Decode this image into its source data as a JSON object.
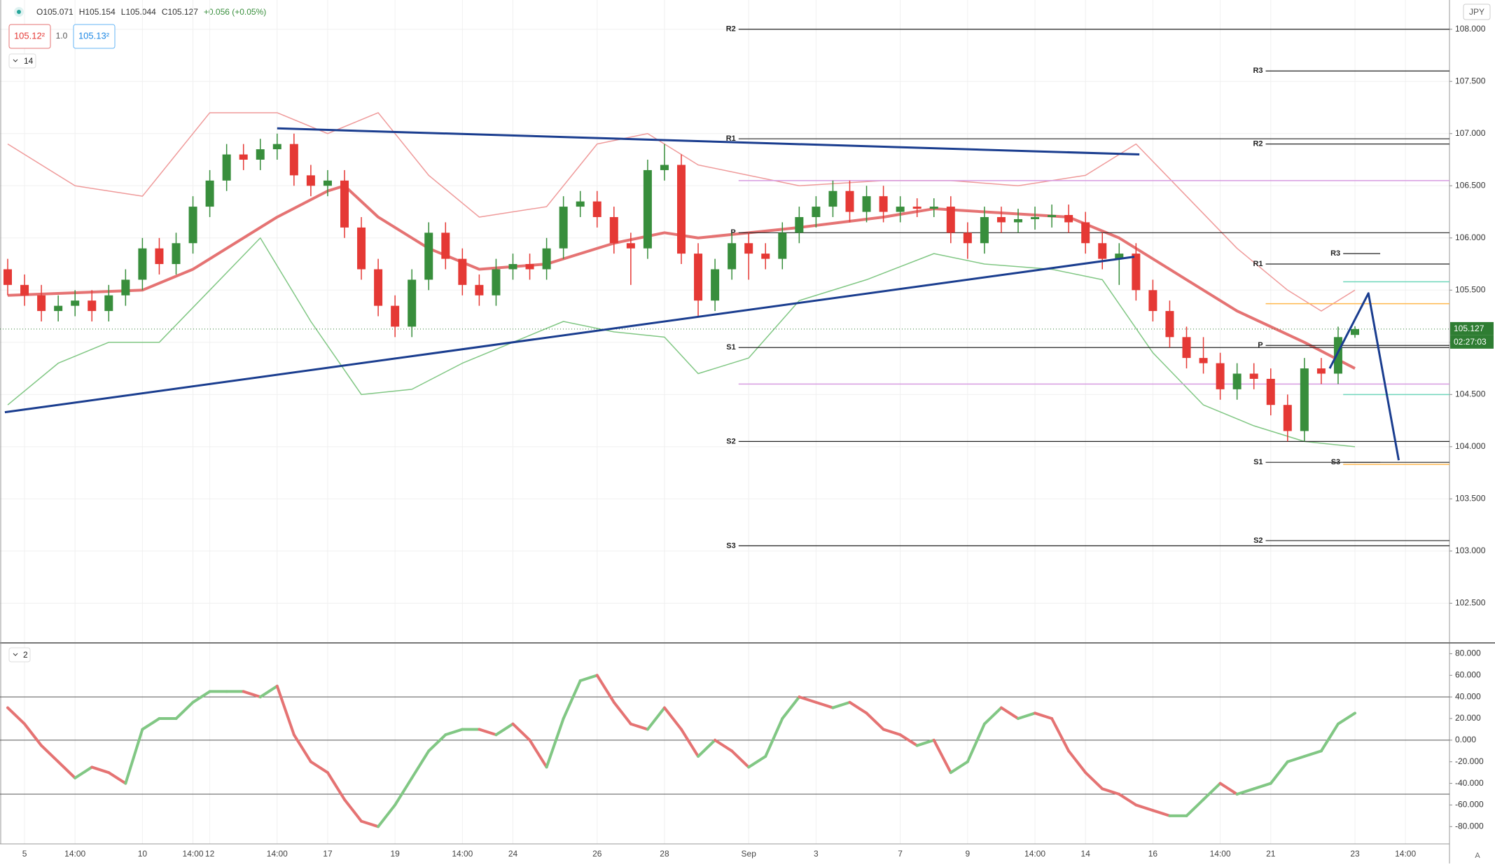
{
  "header": {
    "ohlc": [
      "O105.071",
      "H105.154",
      "L105.044",
      "C105.127",
      "+0.056 (+0.05%)"
    ],
    "sell": "105.12²",
    "spread": "1.0",
    "buy": "105.13²",
    "indicator": "14",
    "currency": "JPY",
    "pane2": "2",
    "scale_mode": "A"
  },
  "chart_data": [
    {
      "type": "candlestick",
      "up_color": "#388e3c",
      "down_color": "#e53935",
      "categories": [
        null,
        "5",
        null,
        null,
        "14:00",
        null,
        null,
        null,
        "10",
        null,
        null,
        "14:00",
        "12",
        null,
        null,
        null,
        "14:00",
        null,
        null,
        "17",
        null,
        null,
        null,
        "19",
        null,
        null,
        null,
        "14:00",
        null,
        null,
        "24",
        null,
        null,
        null,
        null,
        "26",
        null,
        null,
        null,
        "28",
        null,
        null,
        null,
        null,
        "Sep",
        null,
        null,
        null,
        "3",
        null,
        null,
        null,
        null,
        "7",
        null,
        null,
        null,
        "9",
        null,
        null,
        null,
        "14:00",
        null,
        null,
        "14",
        null,
        null,
        null,
        "16",
        null,
        null,
        null,
        "14:00",
        null,
        null,
        "21",
        null,
        null,
        null,
        null,
        "23",
        null,
        null,
        "14:00"
      ],
      "open": [
        105.7,
        105.55,
        105.45,
        105.3,
        105.35,
        105.4,
        105.3,
        105.45,
        105.6,
        105.9,
        105.75,
        105.95,
        106.3,
        106.55,
        106.8,
        106.75,
        106.85,
        106.9,
        106.6,
        106.5,
        106.55,
        106.1,
        105.7,
        105.35,
        105.15,
        105.6,
        106.05,
        105.8,
        105.55,
        105.45,
        105.7,
        105.75,
        105.7,
        105.9,
        106.3,
        106.35,
        106.2,
        105.95,
        105.9,
        106.65,
        106.7,
        105.85,
        105.4,
        105.7,
        105.95,
        105.85,
        105.8,
        106.05,
        106.2,
        106.3,
        106.45,
        106.25,
        106.4,
        106.25,
        106.3,
        106.28,
        106.3,
        106.05,
        105.95,
        106.2,
        106.15,
        106.18,
        106.2,
        106.22,
        106.15,
        105.95,
        105.8,
        105.85,
        105.5,
        105.3,
        105.05,
        104.85,
        104.8,
        104.55,
        104.7,
        104.65,
        104.4,
        104.15,
        104.75,
        104.7,
        105.071,
        null,
        null,
        null
      ],
      "high": [
        105.8,
        105.65,
        105.55,
        105.45,
        105.5,
        105.5,
        105.55,
        105.7,
        106,
        106,
        106.05,
        106.4,
        106.65,
        106.9,
        106.9,
        106.95,
        107,
        107,
        106.7,
        106.65,
        106.65,
        106.2,
        105.8,
        105.45,
        105.7,
        106.15,
        106.15,
        105.9,
        105.65,
        105.8,
        105.85,
        105.85,
        106,
        106.4,
        106.45,
        106.45,
        106.3,
        106.05,
        106.75,
        106.9,
        106.8,
        105.95,
        105.8,
        106.05,
        106.05,
        105.95,
        106.15,
        106.3,
        106.4,
        106.55,
        106.55,
        106.5,
        106.5,
        106.4,
        106.38,
        106.38,
        106.4,
        106.15,
        106.3,
        106.3,
        106.28,
        106.3,
        106.32,
        106.32,
        106.25,
        106.05,
        105.95,
        105.95,
        105.6,
        105.4,
        105.15,
        105.05,
        104.9,
        104.8,
        104.8,
        104.75,
        104.5,
        104.85,
        104.85,
        105.15,
        105.154,
        null,
        null,
        null
      ],
      "low": [
        105.45,
        105.35,
        105.2,
        105.2,
        105.25,
        105.2,
        105.2,
        105.35,
        105.5,
        105.65,
        105.65,
        105.85,
        106.2,
        106.45,
        106.65,
        106.65,
        106.75,
        106.5,
        106.4,
        106.4,
        106,
        105.6,
        105.25,
        105.05,
        105.05,
        105.5,
        105.7,
        105.45,
        105.35,
        105.35,
        105.6,
        105.6,
        105.6,
        105.8,
        106.2,
        106.1,
        105.85,
        105.55,
        105.8,
        106.55,
        105.75,
        105.25,
        105.3,
        105.6,
        105.6,
        105.7,
        105.7,
        105.95,
        106.1,
        106.2,
        106.15,
        106.15,
        106.15,
        106.15,
        106.2,
        106.2,
        105.95,
        105.8,
        105.85,
        106.05,
        106.05,
        106.08,
        106.1,
        106.05,
        105.85,
        105.7,
        105.55,
        105.4,
        105.2,
        104.95,
        104.75,
        104.7,
        104.45,
        104.45,
        104.55,
        104.3,
        104.05,
        104.05,
        104.6,
        104.6,
        105.044,
        null,
        null,
        null
      ],
      "close": [
        105.55,
        105.45,
        105.3,
        105.35,
        105.4,
        105.3,
        105.45,
        105.6,
        105.9,
        105.75,
        105.95,
        106.3,
        106.55,
        106.8,
        106.75,
        106.85,
        106.9,
        106.6,
        106.5,
        106.55,
        106.1,
        105.7,
        105.35,
        105.15,
        105.6,
        106.05,
        105.8,
        105.55,
        105.45,
        105.7,
        105.75,
        105.7,
        105.9,
        106.3,
        106.35,
        106.2,
        105.95,
        105.9,
        106.65,
        106.7,
        105.85,
        105.4,
        105.7,
        105.95,
        105.85,
        105.8,
        106.05,
        106.2,
        106.3,
        106.45,
        106.25,
        106.4,
        106.25,
        106.3,
        106.28,
        106.3,
        106.05,
        105.95,
        106.2,
        106.15,
        106.18,
        106.2,
        106.22,
        106.15,
        105.95,
        105.8,
        105.85,
        105.5,
        105.3,
        105.05,
        104.85,
        104.8,
        104.55,
        104.7,
        104.65,
        104.4,
        104.15,
        104.75,
        104.7,
        105.05,
        105.127,
        null,
        null,
        null
      ],
      "ylim": [
        102.12,
        108.28
      ],
      "yticks": [
        {
          "value": 102.5,
          "label": "102.500"
        },
        {
          "value": 103,
          "label": "103.000"
        },
        {
          "value": 103.5,
          "label": "103.500"
        },
        {
          "value": 104,
          "label": "104.000"
        },
        {
          "value": 104.5,
          "label": "104.500"
        },
        {
          "value": 105,
          "label": "105.000"
        },
        {
          "value": 105.5,
          "label": "105.500"
        },
        {
          "value": 106,
          "label": "106.000"
        },
        {
          "value": 106.5,
          "label": "106.500"
        },
        {
          "value": 107,
          "label": "107.000"
        },
        {
          "value": 107.5,
          "label": "107.500"
        },
        {
          "value": 108,
          "label": "108.000"
        }
      ],
      "grid": true,
      "last_price": 105.127,
      "last_price_color": "#2e7d32",
      "countdown": "02:27:03",
      "overlays": [
        {
          "color": "#e57373",
          "width": 4,
          "x": [
            0,
            8,
            11,
            16,
            19,
            20,
            22,
            25,
            28,
            32,
            36,
            39,
            41,
            44,
            47,
            52,
            55,
            58,
            63,
            66,
            70,
            73,
            77,
            80
          ],
          "values": [
            105.45,
            105.5,
            105.7,
            106.2,
            106.45,
            106.5,
            106.2,
            105.9,
            105.7,
            105.75,
            105.95,
            106.05,
            106,
            106.05,
            106.1,
            106.2,
            106.28,
            106.25,
            106.2,
            106,
            105.6,
            105.3,
            105,
            104.75
          ]
        },
        {
          "color": "#ef9a9a",
          "width": 1.5,
          "x": [
            0,
            4,
            8,
            12,
            16,
            19,
            22,
            25,
            28,
            32,
            35,
            38,
            41,
            44,
            47,
            52,
            56,
            60,
            64,
            67,
            70,
            73,
            76,
            78,
            80
          ],
          "values": [
            106.9,
            106.5,
            106.4,
            107.2,
            107.2,
            107,
            107.2,
            106.6,
            106.2,
            106.3,
            106.9,
            107,
            106.7,
            106.6,
            106.5,
            106.55,
            106.55,
            106.5,
            106.6,
            106.9,
            106.4,
            105.9,
            105.5,
            105.3,
            105.5
          ]
        },
        {
          "color": "#81c784",
          "width": 1.5,
          "x": [
            0,
            3,
            6,
            9,
            12,
            15,
            18,
            21,
            24,
            27,
            30,
            33,
            36,
            39,
            41,
            44,
            47,
            51,
            55,
            58,
            62,
            65,
            68,
            71,
            74,
            77,
            80
          ],
          "values": [
            104.4,
            104.8,
            105,
            105,
            105.5,
            106,
            105.2,
            104.5,
            104.55,
            104.8,
            105,
            105.2,
            105.1,
            105.05,
            104.7,
            104.85,
            105.4,
            105.6,
            105.85,
            105.75,
            105.7,
            105.6,
            104.9,
            104.4,
            104.2,
            104.05,
            104
          ]
        }
      ],
      "drawings": [
        {
          "color": "#1a3d8f",
          "x": [
            -0.17,
            66.9
          ],
          "values": [
            104.33,
            105.82
          ]
        },
        {
          "color": "#1a3d8f",
          "x": [
            16,
            67.2
          ],
          "values": [
            107.05,
            106.8
          ]
        },
        {
          "color": "#1a3d8f",
          "x": [
            78.5,
            80.8,
            82.6
          ],
          "values": [
            104.75,
            105.47,
            103.87
          ]
        }
      ],
      "pivots": [
        {
          "start": 43.4,
          "levels": [
            {
              "label": "R2",
              "value": 108
            },
            {
              "label": "R1",
              "value": 106.95
            },
            {
              "label": "P",
              "value": 106.05
            },
            {
              "label": "S1",
              "value": 104.95
            },
            {
              "label": "S2",
              "value": 104.05
            },
            {
              "label": "S3",
              "value": 103.05
            }
          ]
        },
        {
          "start": 74.7,
          "levels": [
            {
              "label": "R3",
              "value": 107.6
            },
            {
              "label": "R2",
              "value": 106.9
            },
            {
              "label": "R1",
              "value": 105.75
            },
            {
              "label": "P",
              "value": 104.97
            },
            {
              "label": "S1",
              "value": 103.85
            },
            {
              "label": "S2",
              "value": 103.1
            }
          ]
        },
        {
          "start": 79.3,
          "end": 81.5,
          "levels": [
            {
              "label": "R3",
              "value": 105.85
            },
            {
              "label": "S3",
              "value": 103.85
            }
          ]
        }
      ],
      "levels": [
        {
          "value": 106.55,
          "color": "#d69be0",
          "start": 43.4
        },
        {
          "value": 104.6,
          "color": "#d69be0",
          "start": 43.4
        },
        {
          "value": 105.58,
          "color": "#6fd6bb",
          "start": 79.3
        },
        {
          "value": 105.37,
          "color": "#ffb74d",
          "start": 74.7
        },
        {
          "value": 104.5,
          "color": "#6fd6bb",
          "start": 79.3
        },
        {
          "value": 103.83,
          "color": "#ffb74d",
          "start": 79.3
        }
      ]
    },
    {
      "type": "oscillator",
      "up_color": "#81c784",
      "down_color": "#e57373",
      "values": [
        30,
        15,
        -5,
        -20,
        -35,
        -25,
        -30,
        -40,
        10,
        20,
        20,
        35,
        45,
        45,
        45,
        40,
        50,
        5,
        -20,
        -30,
        -55,
        -75,
        -80,
        -60,
        -35,
        -10,
        5,
        10,
        10,
        5,
        15,
        0,
        -25,
        20,
        55,
        60,
        35,
        15,
        10,
        30,
        10,
        -15,
        0,
        -10,
        -25,
        -15,
        20,
        40,
        35,
        30,
        35,
        25,
        10,
        5,
        -5,
        0,
        -30,
        -20,
        15,
        30,
        20,
        25,
        20,
        -10,
        -30,
        -45,
        -50,
        -60,
        -65,
        -70,
        -70,
        -55,
        -40,
        -50,
        -45,
        -40,
        -20,
        -15,
        -10,
        15,
        25,
        null,
        null,
        null
      ],
      "ylim": [
        -96,
        90
      ],
      "yticks": [
        {
          "value": -80,
          "label": "-80.000"
        },
        {
          "value": -60,
          "label": "-60.000"
        },
        {
          "value": -40,
          "label": "-40.000"
        },
        {
          "value": -20,
          "label": "-20.000"
        },
        {
          "value": 0,
          "label": "0.000"
        },
        {
          "value": 20,
          "label": "20.000"
        },
        {
          "value": 40,
          "label": "40.000"
        },
        {
          "value": 60,
          "label": "60.000"
        },
        {
          "value": 80,
          "label": "80.000"
        }
      ],
      "levels": [
        40,
        0,
        -50
      ]
    }
  ]
}
